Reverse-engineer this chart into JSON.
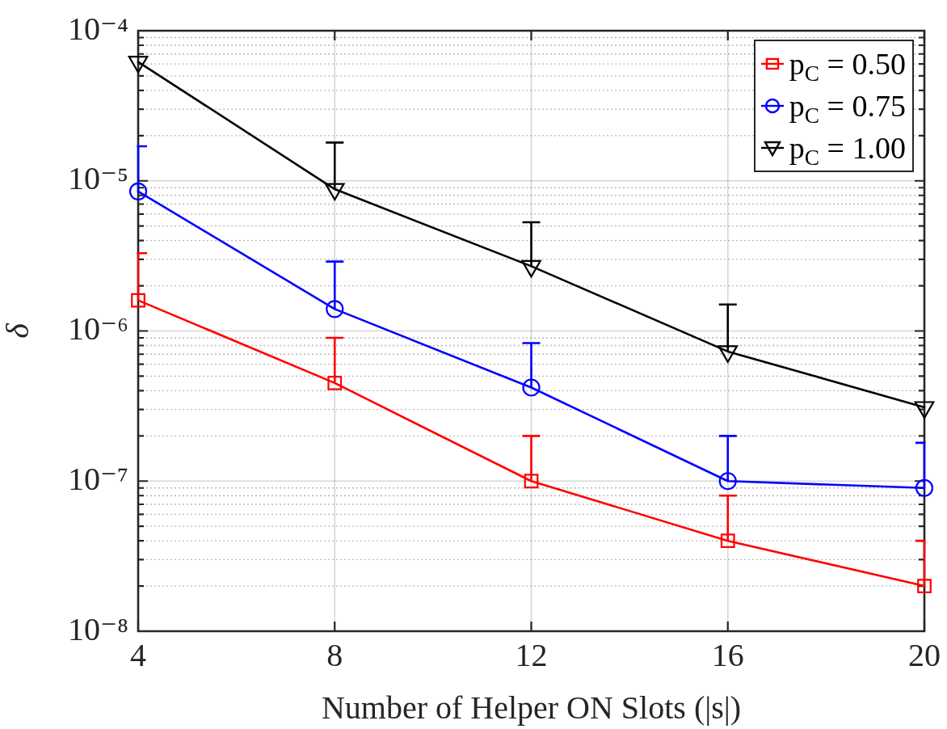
{
  "chart_data": {
    "type": "line",
    "xlabel": "Number of Helper ON Slots (|s|)",
    "ylabel": "δ",
    "x": [
      4,
      8,
      12,
      16,
      20
    ],
    "xlim": [
      4,
      20
    ],
    "xticks": [
      4,
      8,
      12,
      16,
      20
    ],
    "ylim": [
      1e-08,
      0.0001
    ],
    "yticks": [
      {
        "value": 1e-08,
        "label": "10⁻⁸"
      },
      {
        "value": 2e-08,
        "label": null
      },
      {
        "value": 3e-08,
        "label": null
      },
      {
        "value": 4e-08,
        "label": null
      },
      {
        "value": 5e-08,
        "label": null
      },
      {
        "value": 6e-08,
        "label": null
      },
      {
        "value": 7e-08,
        "label": null
      },
      {
        "value": 8e-08,
        "label": null
      },
      {
        "value": 9e-08,
        "label": null
      },
      {
        "value": 1e-07,
        "label": "10⁻⁷"
      },
      {
        "value": 2e-07,
        "label": null
      },
      {
        "value": 3e-07,
        "label": null
      },
      {
        "value": 4e-07,
        "label": null
      },
      {
        "value": 5e-07,
        "label": null
      },
      {
        "value": 6e-07,
        "label": null
      },
      {
        "value": 7e-07,
        "label": null
      },
      {
        "value": 8e-07,
        "label": null
      },
      {
        "value": 9e-07,
        "label": null
      },
      {
        "value": 1e-06,
        "label": "10⁻⁶"
      },
      {
        "value": 2e-06,
        "label": null
      },
      {
        "value": 3e-06,
        "label": null
      },
      {
        "value": 4e-06,
        "label": null
      },
      {
        "value": 5e-06,
        "label": null
      },
      {
        "value": 6e-06,
        "label": null
      },
      {
        "value": 7e-06,
        "label": null
      },
      {
        "value": 8e-06,
        "label": null
      },
      {
        "value": 9e-06,
        "label": null
      },
      {
        "value": 1e-05,
        "label": "10⁻⁵"
      },
      {
        "value": 2e-05,
        "label": null
      },
      {
        "value": 3e-05,
        "label": null
      },
      {
        "value": 4e-05,
        "label": null
      },
      {
        "value": 5e-05,
        "label": null
      },
      {
        "value": 6e-05,
        "label": null
      },
      {
        "value": 7e-05,
        "label": null
      },
      {
        "value": 8e-05,
        "label": null
      },
      {
        "value": 9e-05,
        "label": null
      },
      {
        "value": 0.0001,
        "label": "10⁻⁴"
      }
    ],
    "log": true,
    "grid": true,
    "legend": "top right",
    "line_style": "solid",
    "series": [
      {
        "name": "p$_{C}$ = 0.50",
        "color": "#ff0000",
        "marker": "square",
        "values": [
          1.6e-06,
          4.5e-07,
          1e-07,
          4e-08,
          2e-08
        ],
        "errors": [
          [
            1.6e-06,
            3.3e-06
          ],
          [
            4.5e-07,
            9e-07
          ],
          [
            1e-07,
            2e-07
          ],
          [
            4e-08,
            8e-08
          ],
          [
            2e-08,
            4e-08
          ]
        ]
      },
      {
        "name": "p$_{C}$ = 0.75",
        "color": "#0000ff",
        "marker": "circle",
        "values": [
          8.5e-06,
          1.4e-06,
          4.2e-07,
          1e-07,
          9e-08
        ],
        "errors": [
          [
            8.5e-06,
            1.7e-05
          ],
          [
            1.4e-06,
            2.9e-06
          ],
          [
            4.2e-07,
            8.3e-07
          ],
          [
            1e-07,
            2e-07
          ],
          [
            9e-08,
            1.8e-07
          ]
        ]
      },
      {
        "name": "p$_{C}$ = 1.00",
        "color": "#000000",
        "marker": "triangle",
        "values": [
          6.2e-05,
          8.8e-06,
          2.7e-06,
          7.3e-07,
          3.1e-07
        ],
        "errors": [
          null,
          [
            8.8e-06,
            1.8e-05
          ],
          [
            2.7e-06,
            5.3e-06
          ],
          [
            7.3e-07,
            1.5e-06
          ],
          null
        ]
      }
    ]
  }
}
